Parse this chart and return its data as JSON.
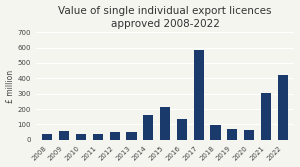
{
  "title": "Value of single individual export licences\napproved 2008-2022",
  "ylabel": "£ million",
  "years": [
    2008,
    2009,
    2010,
    2011,
    2012,
    2013,
    2014,
    2015,
    2016,
    2017,
    2018,
    2019,
    2020,
    2021,
    2022
  ],
  "values": [
    38,
    55,
    40,
    38,
    50,
    50,
    160,
    210,
    138,
    585,
    93,
    68,
    60,
    305,
    420
  ],
  "bar_color": "#1a3a6b",
  "ylim": [
    0,
    700
  ],
  "yticks": [
    0,
    100,
    200,
    300,
    400,
    500,
    600,
    700
  ],
  "title_fontsize": 7.5,
  "ylabel_fontsize": 5.5,
  "tick_fontsize": 5.0,
  "background_color": "#f5f5f0",
  "grid_color": "#ffffff"
}
